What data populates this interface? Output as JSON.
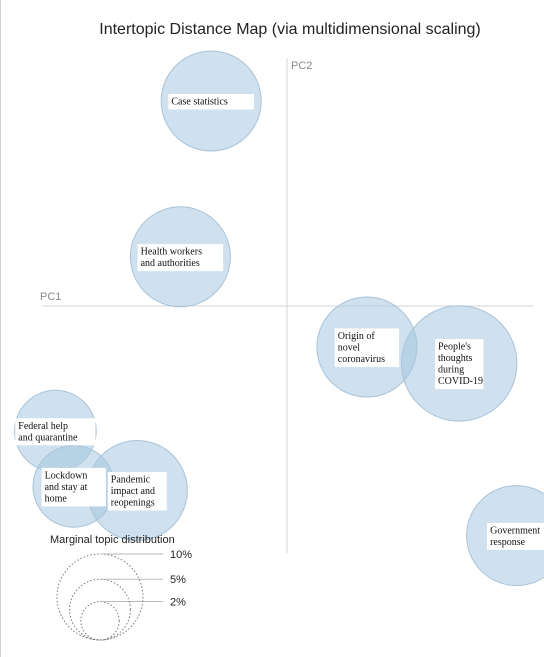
{
  "chart_data": {
    "type": "scatter",
    "title": "Intertopic Distance Map (via multidimensional scaling)",
    "x_axis_label": "PC1",
    "y_axis_label": "PC2",
    "topics": [
      {
        "name": "Case statistics",
        "lines": [
          "Case statistics"
        ],
        "pc1": -0.37,
        "pc2": 1.0,
        "size": 9
      },
      {
        "name": "Health workers and authorities",
        "lines": [
          "Health workers",
          "and authorities"
        ],
        "pc1": -0.52,
        "pc2": 0.24,
        "size": 9
      },
      {
        "name": "Origin of novel coronavirus",
        "lines": [
          "Origin of",
          "novel",
          "coronavirus"
        ],
        "pc1": 0.39,
        "pc2": -0.2,
        "size": 9
      },
      {
        "name": "People's thoughts during COVID-19",
        "lines": [
          "People's",
          "thoughts",
          "during",
          "COVID-19"
        ],
        "pc1": 0.84,
        "pc2": -0.28,
        "size": 12
      },
      {
        "name": "Federal help and quarantine",
        "lines": [
          "Federal help",
          "and quarantine"
        ],
        "pc1": -1.13,
        "pc2": -0.61,
        "size": 6
      },
      {
        "name": "Lockdown and stay at home",
        "lines": [
          "Lockdown",
          "and stay at",
          "home"
        ],
        "pc1": -1.04,
        "pc2": -0.88,
        "size": 6
      },
      {
        "name": "Pandemic impact and reopenings",
        "lines": [
          "Pandemic",
          "impact and",
          "reopenings"
        ],
        "pc1": -0.73,
        "pc2": -0.9,
        "size": 9
      },
      {
        "name": "Government response",
        "lines": [
          "Government",
          "response"
        ],
        "pc1": 1.12,
        "pc2": -1.12,
        "size": 9
      }
    ],
    "legend": {
      "title": "Marginal topic distribution",
      "items": [
        {
          "label": "2%",
          "value": 2
        },
        {
          "label": "5%",
          "value": 5
        },
        {
          "label": "10%",
          "value": 10
        }
      ]
    },
    "colors": {
      "bubble": "#a8c8e0",
      "axis": "#d6d6d6"
    }
  }
}
